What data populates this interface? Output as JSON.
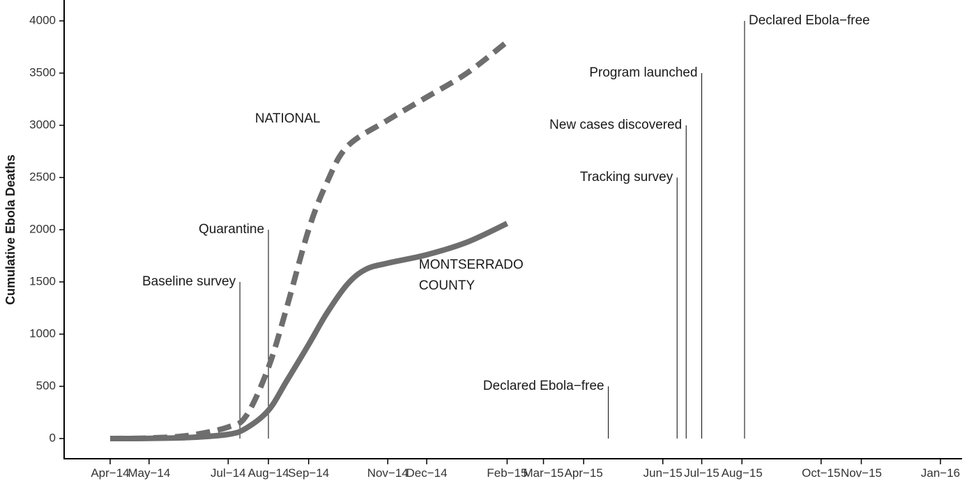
{
  "chart_data": {
    "type": "line",
    "title": "",
    "xlabel": "",
    "ylabel": "Cumulative Ebola Deaths",
    "ylim": [
      0,
      4000
    ],
    "grid": false,
    "y_ticks": [
      0,
      500,
      1000,
      1500,
      2000,
      2500,
      3000,
      3500,
      4000
    ],
    "x_ticks": [
      {
        "date": "2014-04-01",
        "label": "Apr−14"
      },
      {
        "date": "2014-05-01",
        "label": "May−14"
      },
      {
        "date": "2014-07-01",
        "label": "Jul−14"
      },
      {
        "date": "2014-08-01",
        "label": "Aug−14"
      },
      {
        "date": "2014-09-01",
        "label": "Sep−14"
      },
      {
        "date": "2014-11-01",
        "label": "Nov−14"
      },
      {
        "date": "2014-12-01",
        "label": "Dec−14"
      },
      {
        "date": "2015-02-01",
        "label": "Feb−15"
      },
      {
        "date": "2015-03-01",
        "label": "Mar−15"
      },
      {
        "date": "2015-04-01",
        "label": "Apr−15"
      },
      {
        "date": "2015-06-01",
        "label": "Jun−15"
      },
      {
        "date": "2015-07-01",
        "label": "Jul−15"
      },
      {
        "date": "2015-08-01",
        "label": "Aug−15"
      },
      {
        "date": "2015-10-01",
        "label": "Oct−15"
      },
      {
        "date": "2015-11-01",
        "label": "Nov−15"
      },
      {
        "date": "2016-01-01",
        "label": "Jan−16"
      }
    ],
    "series": [
      {
        "name": "NATIONAL",
        "style": "dashed",
        "color": "#6e6e6e",
        "points": [
          {
            "x": "2014-04-01",
            "y": 0
          },
          {
            "x": "2014-05-01",
            "y": 5
          },
          {
            "x": "2014-06-01",
            "y": 30
          },
          {
            "x": "2014-07-01",
            "y": 110
          },
          {
            "x": "2014-07-15",
            "y": 220
          },
          {
            "x": "2014-08-01",
            "y": 680
          },
          {
            "x": "2014-08-15",
            "y": 1250
          },
          {
            "x": "2014-09-01",
            "y": 2000
          },
          {
            "x": "2014-09-15",
            "y": 2450
          },
          {
            "x": "2014-10-01",
            "y": 2800
          },
          {
            "x": "2014-11-01",
            "y": 3050
          },
          {
            "x": "2014-12-01",
            "y": 3270
          },
          {
            "x": "2015-01-01",
            "y": 3500
          },
          {
            "x": "2015-02-01",
            "y": 3800
          }
        ]
      },
      {
        "name": "MONTSERRADO COUNTY",
        "style": "solid",
        "color": "#6e6e6e",
        "points": [
          {
            "x": "2014-04-01",
            "y": 0
          },
          {
            "x": "2014-05-01",
            "y": 2
          },
          {
            "x": "2014-06-01",
            "y": 10
          },
          {
            "x": "2014-07-01",
            "y": 40
          },
          {
            "x": "2014-07-15",
            "y": 100
          },
          {
            "x": "2014-08-01",
            "y": 270
          },
          {
            "x": "2014-08-15",
            "y": 550
          },
          {
            "x": "2014-09-01",
            "y": 900
          },
          {
            "x": "2014-09-15",
            "y": 1200
          },
          {
            "x": "2014-10-01",
            "y": 1480
          },
          {
            "x": "2014-10-15",
            "y": 1620
          },
          {
            "x": "2014-11-01",
            "y": 1680
          },
          {
            "x": "2014-12-01",
            "y": 1760
          },
          {
            "x": "2015-01-01",
            "y": 1880
          },
          {
            "x": "2015-02-01",
            "y": 2060
          }
        ]
      }
    ],
    "series_labels": [
      {
        "lines": [
          "NATIONAL"
        ],
        "x": "2014-09-10",
        "y": 3000,
        "anchor": "end"
      },
      {
        "lines": [
          "MONTSERRADO",
          "COUNTY"
        ],
        "x": "2014-11-25",
        "y": 1600,
        "anchor": "start"
      }
    ],
    "annotations": [
      {
        "label": "Baseline survey",
        "date": "2014-07-10",
        "y": 1500
      },
      {
        "label": "Quarantine",
        "date": "2014-08-01",
        "y": 2000
      },
      {
        "label": "Declared Ebola−free",
        "date": "2015-04-20",
        "y": 500
      },
      {
        "label": "Tracking survey",
        "date": "2015-06-12",
        "y": 2500
      },
      {
        "label": "New cases discovered",
        "date": "2015-06-19",
        "y": 3000
      },
      {
        "label": "Program launched",
        "date": "2015-07-01",
        "y": 3500
      },
      {
        "label": "Declared Ebola−free",
        "date": "2015-08-03",
        "y": 4000
      }
    ]
  }
}
